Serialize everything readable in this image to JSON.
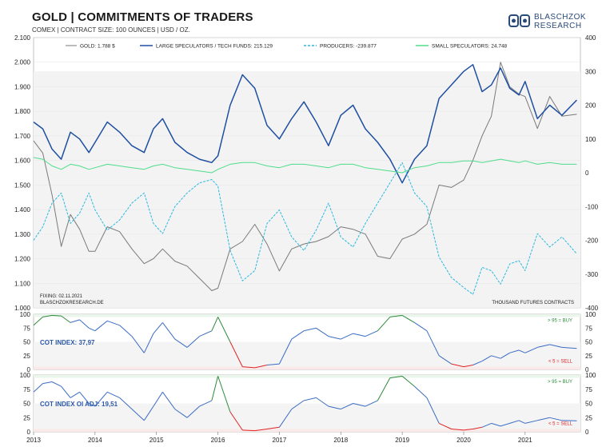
{
  "header": {
    "title": "GOLD | COMMITMENTS OF TRADERS",
    "subtitle": "COMEX | CONTRACT SIZE: 100 OUNCES | USD / OZ."
  },
  "brand": {
    "line1": "BLASCHZOK",
    "line2": "RESEARCH"
  },
  "colors": {
    "gold": "#7a7a7a",
    "large_spec": "#1f4fa0",
    "producers": "#2bb8e0",
    "small_spec": "#4ddd8a",
    "buy": "#2e8b3d",
    "sell": "#e02424",
    "cot_line": "#3b6cc4"
  },
  "chart_data": [
    {
      "type": "line",
      "title": "GOLD | COMMITMENTS OF TRADERS",
      "years": [
        "2013",
        "2014",
        "2015",
        "2016",
        "2017",
        "2018",
        "2019",
        "2020",
        "2021"
      ],
      "y_left": {
        "label": "",
        "ticks": [
          "1.000",
          "1.100",
          "1.200",
          "1.300",
          "1.400",
          "1.500",
          "1.600",
          "1.700",
          "1.800",
          "1.900",
          "2.000",
          "2.100"
        ],
        "range": [
          1000,
          2100
        ]
      },
      "y_right": {
        "label": "",
        "ticks": [
          "-400",
          "-300",
          "-200",
          "-100",
          "0",
          "100",
          "200",
          "300",
          "400"
        ],
        "range": [
          -400,
          400
        ]
      },
      "legend": [
        {
          "label": "GOLD: 1.788 $",
          "key": "gold"
        },
        {
          "label": "LARGE SPECULATORS / TECH FUNDS: 215.129",
          "key": "large_spec"
        },
        {
          "label": "PRODUCERS: -239.877",
          "key": "producers"
        },
        {
          "label": "SMALL SPECULATORS: 24.748",
          "key": "small_spec"
        }
      ],
      "fixing": "FIXING: 02.11.2021",
      "source": "BLASCHZOKRESEARCH.DE",
      "units_note": "THOUSAND FUTURES CONTRACTS",
      "series": [
        {
          "name": "GOLD: 1.788 $",
          "axis": "left",
          "key": "gold",
          "x": [
            2013.0,
            2013.15,
            2013.3,
            2013.45,
            2013.6,
            2013.75,
            2013.9,
            2014.0,
            2014.2,
            2014.4,
            2014.6,
            2014.8,
            2014.95,
            2015.1,
            2015.3,
            2015.5,
            2015.7,
            2015.9,
            2016.0,
            2016.2,
            2016.4,
            2016.6,
            2016.8,
            2017.0,
            2017.2,
            2017.4,
            2017.6,
            2017.8,
            2018.0,
            2018.2,
            2018.4,
            2018.6,
            2018.8,
            2019.0,
            2019.2,
            2019.4,
            2019.6,
            2019.8,
            2020.0,
            2020.15,
            2020.3,
            2020.45,
            2020.6,
            2020.75,
            2020.9,
            2021.0,
            2021.2,
            2021.4,
            2021.6,
            2021.84
          ],
          "y": [
            1680,
            1630,
            1460,
            1250,
            1380,
            1320,
            1230,
            1230,
            1330,
            1310,
            1240,
            1180,
            1200,
            1240,
            1190,
            1170,
            1120,
            1070,
            1080,
            1240,
            1270,
            1340,
            1260,
            1150,
            1240,
            1260,
            1270,
            1290,
            1330,
            1320,
            1300,
            1210,
            1200,
            1280,
            1300,
            1340,
            1500,
            1490,
            1520,
            1600,
            1700,
            1780,
            2000,
            1900,
            1870,
            1860,
            1730,
            1860,
            1780,
            1788
          ]
        },
        {
          "name": "LARGE SPECULATORS / TECH FUNDS: 215.129",
          "axis": "right",
          "key": "large_spec",
          "x": [
            2013.0,
            2013.15,
            2013.3,
            2013.45,
            2013.6,
            2013.75,
            2013.9,
            2014.0,
            2014.2,
            2014.4,
            2014.6,
            2014.8,
            2014.95,
            2015.1,
            2015.3,
            2015.5,
            2015.7,
            2015.9,
            2016.0,
            2016.2,
            2016.4,
            2016.6,
            2016.8,
            2017.0,
            2017.2,
            2017.4,
            2017.6,
            2017.8,
            2018.0,
            2018.2,
            2018.4,
            2018.6,
            2018.8,
            2019.0,
            2019.2,
            2019.4,
            2019.6,
            2019.8,
            2020.0,
            2020.15,
            2020.3,
            2020.45,
            2020.6,
            2020.75,
            2020.9,
            2021.0,
            2021.2,
            2021.4,
            2021.6,
            2021.84
          ],
          "y": [
            150,
            130,
            70,
            40,
            120,
            100,
            60,
            90,
            150,
            120,
            80,
            60,
            130,
            160,
            90,
            60,
            40,
            30,
            50,
            200,
            290,
            250,
            140,
            100,
            160,
            210,
            150,
            80,
            170,
            200,
            130,
            90,
            40,
            -30,
            40,
            80,
            220,
            260,
            300,
            320,
            240,
            260,
            310,
            250,
            230,
            270,
            160,
            200,
            170,
            215
          ]
        },
        {
          "name": "PRODUCERS: -239.877",
          "axis": "right",
          "key": "producers",
          "x": [
            2013.0,
            2013.15,
            2013.3,
            2013.45,
            2013.6,
            2013.75,
            2013.9,
            2014.0,
            2014.2,
            2014.4,
            2014.6,
            2014.8,
            2014.95,
            2015.1,
            2015.3,
            2015.5,
            2015.7,
            2015.9,
            2016.0,
            2016.2,
            2016.4,
            2016.6,
            2016.8,
            2017.0,
            2017.2,
            2017.4,
            2017.6,
            2017.8,
            2018.0,
            2018.2,
            2018.4,
            2018.6,
            2018.8,
            2019.0,
            2019.2,
            2019.4,
            2019.6,
            2019.8,
            2020.0,
            2020.15,
            2020.3,
            2020.45,
            2020.6,
            2020.75,
            2020.9,
            2021.0,
            2021.2,
            2021.4,
            2021.6,
            2021.84
          ],
          "y": [
            -200,
            -160,
            -90,
            -60,
            -150,
            -120,
            -60,
            -110,
            -170,
            -140,
            -90,
            -60,
            -150,
            -180,
            -100,
            -60,
            -30,
            -20,
            -40,
            -230,
            -320,
            -290,
            -150,
            -110,
            -190,
            -230,
            -170,
            -90,
            -190,
            -220,
            -150,
            -90,
            -30,
            30,
            -60,
            -100,
            -250,
            -310,
            -340,
            -360,
            -280,
            -290,
            -330,
            -270,
            -260,
            -290,
            -180,
            -220,
            -190,
            -240
          ]
        },
        {
          "name": "SMALL SPECULATORS: 24.748",
          "axis": "right",
          "key": "small_spec",
          "x": [
            2013.0,
            2013.15,
            2013.3,
            2013.45,
            2013.6,
            2013.75,
            2013.9,
            2014.0,
            2014.2,
            2014.4,
            2014.6,
            2014.8,
            2014.95,
            2015.1,
            2015.3,
            2015.5,
            2015.7,
            2015.9,
            2016.0,
            2016.2,
            2016.4,
            2016.6,
            2016.8,
            2017.0,
            2017.2,
            2017.4,
            2017.6,
            2017.8,
            2018.0,
            2018.2,
            2018.4,
            2018.6,
            2018.8,
            2019.0,
            2019.2,
            2019.4,
            2019.6,
            2019.8,
            2020.0,
            2020.15,
            2020.3,
            2020.45,
            2020.6,
            2020.75,
            2020.9,
            2021.0,
            2021.2,
            2021.4,
            2021.6,
            2021.84
          ],
          "y": [
            45,
            40,
            20,
            10,
            25,
            20,
            10,
            15,
            25,
            20,
            15,
            10,
            20,
            25,
            15,
            10,
            5,
            0,
            10,
            25,
            30,
            30,
            20,
            15,
            25,
            25,
            20,
            15,
            25,
            25,
            15,
            10,
            5,
            0,
            15,
            20,
            30,
            30,
            35,
            35,
            30,
            35,
            40,
            35,
            30,
            35,
            25,
            30,
            25,
            25
          ]
        }
      ]
    },
    {
      "type": "line",
      "title": "COT INDEX: 37,97",
      "y_ticks": [
        "0",
        "25",
        "50",
        "75",
        "100"
      ],
      "range": [
        0,
        100
      ],
      "buy_label": "> 95 = BUY",
      "sell_label": "< 5 = SELL",
      "series": [
        {
          "name": "COT INDEX: 37,97",
          "x": [
            2013.0,
            2013.15,
            2013.3,
            2013.45,
            2013.6,
            2013.75,
            2013.9,
            2014.0,
            2014.2,
            2014.4,
            2014.6,
            2014.8,
            2014.95,
            2015.1,
            2015.3,
            2015.5,
            2015.7,
            2015.9,
            2016.0,
            2016.2,
            2016.4,
            2016.6,
            2016.8,
            2017.0,
            2017.2,
            2017.4,
            2017.6,
            2017.8,
            2018.0,
            2018.2,
            2018.4,
            2018.6,
            2018.8,
            2019.0,
            2019.2,
            2019.4,
            2019.6,
            2019.8,
            2020.0,
            2020.15,
            2020.3,
            2020.45,
            2020.6,
            2020.75,
            2020.9,
            2021.0,
            2021.2,
            2021.4,
            2021.6,
            2021.84
          ],
          "y": [
            80,
            95,
            98,
            97,
            85,
            90,
            75,
            70,
            88,
            80,
            60,
            30,
            65,
            85,
            55,
            40,
            60,
            70,
            95,
            50,
            5,
            3,
            8,
            10,
            55,
            70,
            75,
            60,
            55,
            65,
            60,
            70,
            95,
            98,
            85,
            70,
            25,
            10,
            5,
            8,
            15,
            25,
            20,
            30,
            35,
            30,
            40,
            45,
            40,
            38
          ]
        }
      ]
    },
    {
      "type": "line",
      "title": "COT INDEX OI ADJ: 19,51",
      "y_ticks": [
        "0",
        "25",
        "50",
        "75",
        "100"
      ],
      "range": [
        0,
        100
      ],
      "buy_label": "> 95 = BUY",
      "sell_label": "< 5 = SELL",
      "series": [
        {
          "name": "COT INDEX OI ADJ: 19,51",
          "x": [
            2013.0,
            2013.15,
            2013.3,
            2013.45,
            2013.6,
            2013.75,
            2013.9,
            2014.0,
            2014.2,
            2014.4,
            2014.6,
            2014.8,
            2014.95,
            2015.1,
            2015.3,
            2015.5,
            2015.7,
            2015.9,
            2016.0,
            2016.2,
            2016.4,
            2016.6,
            2016.8,
            2017.0,
            2017.2,
            2017.4,
            2017.6,
            2017.8,
            2018.0,
            2018.2,
            2018.4,
            2018.6,
            2018.8,
            2019.0,
            2019.2,
            2019.4,
            2019.6,
            2019.8,
            2020.0,
            2020.15,
            2020.3,
            2020.45,
            2020.6,
            2020.75,
            2020.9,
            2021.0,
            2021.2,
            2021.4,
            2021.6,
            2021.84
          ],
          "y": [
            70,
            85,
            88,
            80,
            60,
            70,
            50,
            45,
            70,
            60,
            40,
            20,
            45,
            70,
            40,
            25,
            45,
            55,
            98,
            35,
            3,
            2,
            5,
            8,
            40,
            55,
            60,
            45,
            40,
            50,
            45,
            55,
            95,
            98,
            80,
            60,
            15,
            5,
            3,
            5,
            8,
            15,
            10,
            15,
            20,
            15,
            20,
            25,
            20,
            19.5
          ]
        }
      ]
    }
  ]
}
